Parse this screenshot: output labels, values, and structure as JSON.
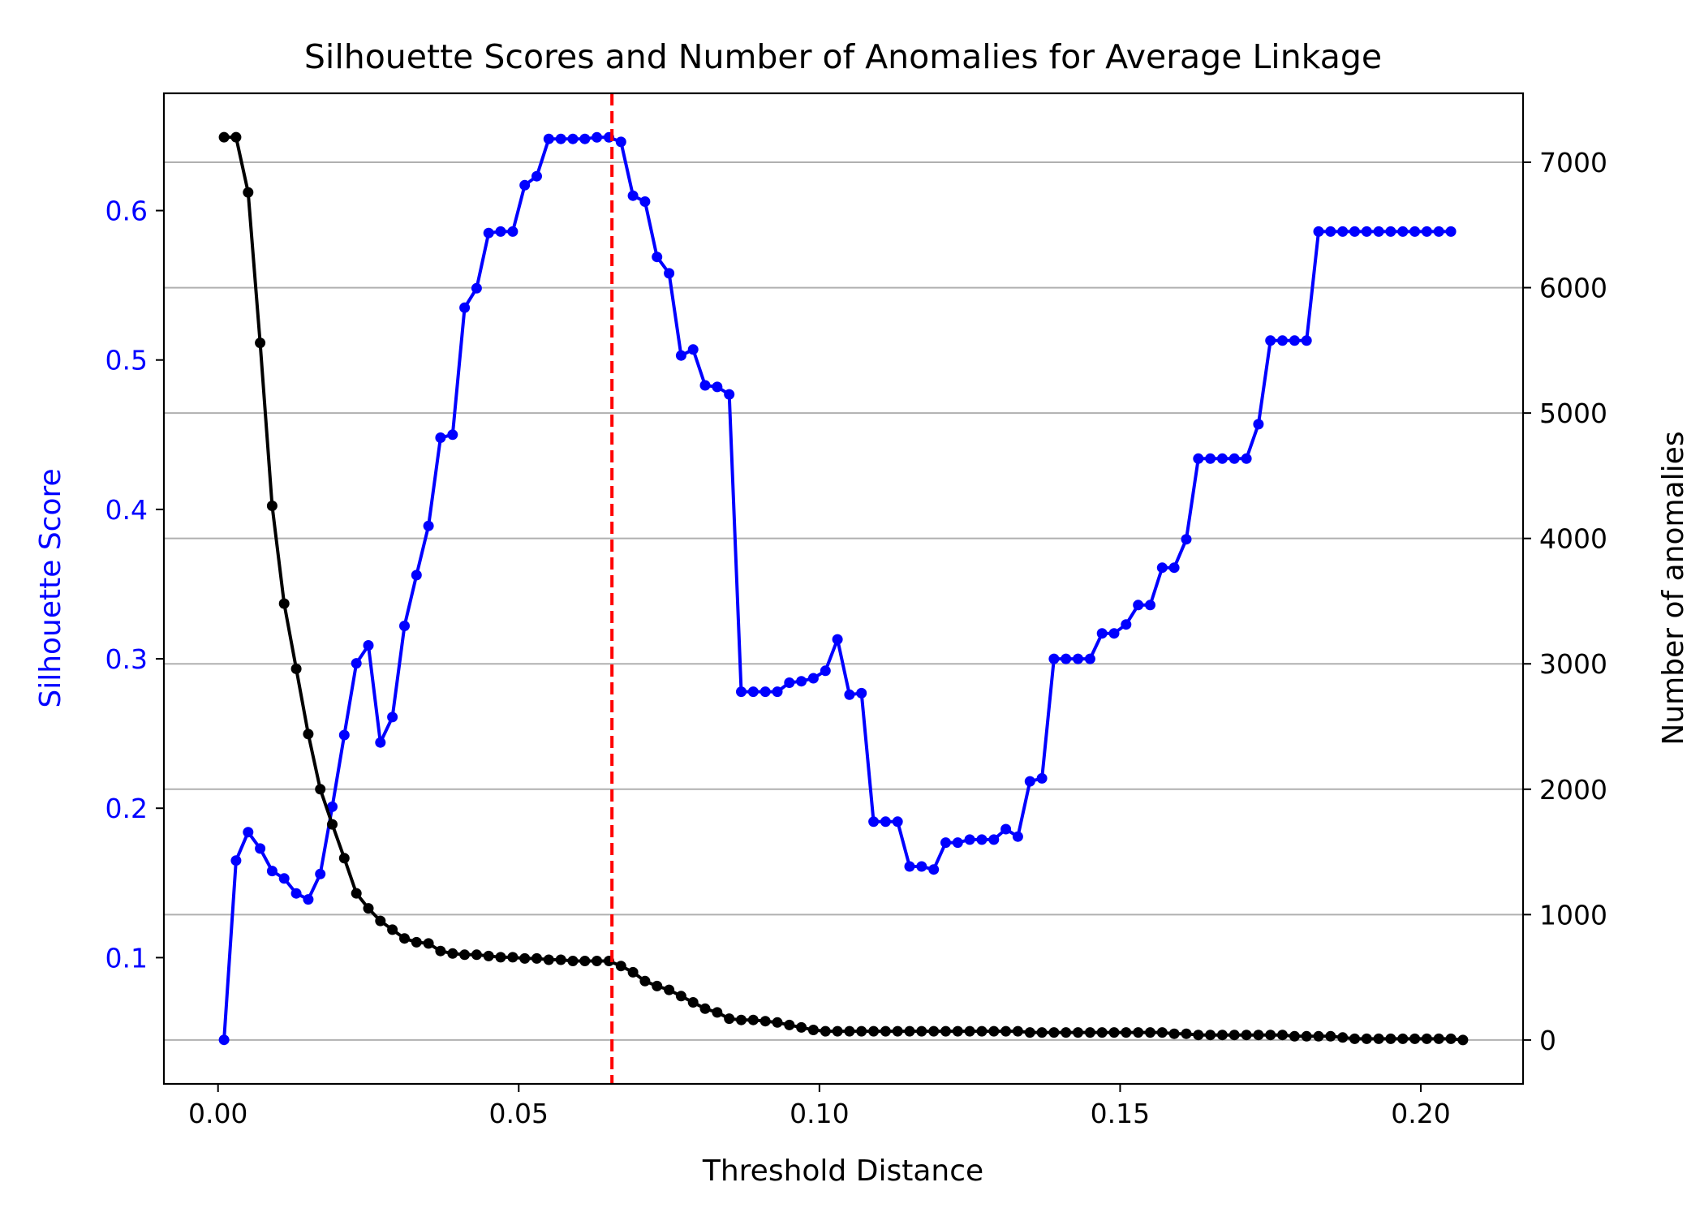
{
  "chart_data": {
    "type": "line",
    "title": "Silhouette Scores and Number of Anomalies for Average Linkage",
    "xlabel": "Threshold Distance",
    "ylabel_left": "Silhouette Score",
    "ylabel_right": "Number of anomalies",
    "xlim": [
      -0.009,
      0.217
    ],
    "ylim_left": [
      0.0155,
      0.6785
    ],
    "ylim_right": [
      -350,
      7550
    ],
    "x_ticks": [
      0.0,
      0.05,
      0.1,
      0.15,
      0.2
    ],
    "x_tick_labels": [
      "0.00",
      "0.05",
      "0.10",
      "0.15",
      "0.20"
    ],
    "y_left_ticks": [
      0.1,
      0.2,
      0.3,
      0.4,
      0.5,
      0.6
    ],
    "y_left_tick_labels": [
      "0.1",
      "0.2",
      "0.3",
      "0.4",
      "0.5",
      "0.6"
    ],
    "y_right_ticks": [
      0,
      1000,
      2000,
      3000,
      4000,
      5000,
      6000,
      7000
    ],
    "y_right_tick_labels": [
      "0",
      "1000",
      "2000",
      "3000",
      "4000",
      "5000",
      "6000",
      "7000"
    ],
    "grid": "horizontal lines at right-axis ticks",
    "colors": {
      "silhouette": "#0000ff",
      "anomalies": "#000000",
      "vline": "#ff0000",
      "grid": "#b0b0b0"
    },
    "vline_x": 0.0655,
    "series": [
      {
        "axis": "left",
        "x": [
          0.001,
          0.003,
          0.005,
          0.007,
          0.009,
          0.011,
          0.013,
          0.015,
          0.017,
          0.019,
          0.021,
          0.023,
          0.025,
          0.027,
          0.029,
          0.031,
          0.033,
          0.035,
          0.037,
          0.039,
          0.041,
          0.043,
          0.045,
          0.047,
          0.049,
          0.051,
          0.053,
          0.055,
          0.057,
          0.059,
          0.061,
          0.063,
          0.065,
          0.067,
          0.069,
          0.071,
          0.073,
          0.075,
          0.077,
          0.079,
          0.081,
          0.083,
          0.085,
          0.087,
          0.089,
          0.091,
          0.093,
          0.095,
          0.097,
          0.099,
          0.101,
          0.103,
          0.105,
          0.107,
          0.109,
          0.111,
          0.113,
          0.115,
          0.117,
          0.119,
          0.121,
          0.123,
          0.125,
          0.127,
          0.129,
          0.131,
          0.133,
          0.135,
          0.137,
          0.139,
          0.141,
          0.143,
          0.145,
          0.147,
          0.149,
          0.151,
          0.153,
          0.155,
          0.157,
          0.159,
          0.161,
          0.163,
          0.165,
          0.167,
          0.169,
          0.171,
          0.173,
          0.175,
          0.177,
          0.179,
          0.181,
          0.183,
          0.185,
          0.187,
          0.189,
          0.191,
          0.193,
          0.195,
          0.197,
          0.199,
          0.201,
          0.203,
          0.205
        ],
        "values": [
          0.045,
          0.165,
          0.184,
          0.173,
          0.158,
          0.153,
          0.143,
          0.139,
          0.156,
          0.201,
          0.249,
          0.297,
          0.309,
          0.244,
          0.261,
          0.322,
          0.356,
          0.389,
          0.448,
          0.45,
          0.535,
          0.548,
          0.585,
          0.586,
          0.586,
          0.617,
          0.623,
          0.648,
          0.648,
          0.648,
          0.648,
          0.649,
          0.649,
          0.646,
          0.61,
          0.606,
          0.569,
          0.558,
          0.503,
          0.507,
          0.483,
          0.482,
          0.477,
          0.278,
          0.278,
          0.278,
          0.278,
          0.284,
          0.285,
          0.287,
          0.292,
          0.313,
          0.276,
          0.277,
          0.191,
          0.191,
          0.191,
          0.161,
          0.161,
          0.159,
          0.177,
          0.177,
          0.179,
          0.179,
          0.179,
          0.186,
          0.181,
          0.218,
          0.22,
          0.3,
          0.3,
          0.3,
          0.3,
          0.317,
          0.317,
          0.323,
          0.336,
          0.336,
          0.361,
          0.361,
          0.38,
          0.434,
          0.434,
          0.434,
          0.434,
          0.434,
          0.457,
          0.513,
          0.513,
          0.513,
          0.513,
          0.586,
          0.586,
          0.586,
          0.586,
          0.586,
          0.586,
          0.586,
          0.586,
          0.586,
          0.586,
          0.586,
          0.586
        ]
      },
      {
        "axis": "right",
        "x": [
          0.001,
          0.003,
          0.005,
          0.007,
          0.009,
          0.011,
          0.013,
          0.015,
          0.017,
          0.019,
          0.021,
          0.023,
          0.025,
          0.027,
          0.029,
          0.031,
          0.033,
          0.035,
          0.037,
          0.039,
          0.041,
          0.043,
          0.045,
          0.047,
          0.049,
          0.051,
          0.053,
          0.055,
          0.057,
          0.059,
          0.061,
          0.063,
          0.065,
          0.067,
          0.069,
          0.071,
          0.073,
          0.075,
          0.077,
          0.079,
          0.081,
          0.083,
          0.085,
          0.087,
          0.089,
          0.091,
          0.093,
          0.095,
          0.097,
          0.099,
          0.101,
          0.103,
          0.105,
          0.107,
          0.109,
          0.111,
          0.113,
          0.115,
          0.117,
          0.119,
          0.121,
          0.123,
          0.125,
          0.127,
          0.129,
          0.131,
          0.133,
          0.135,
          0.137,
          0.139,
          0.141,
          0.143,
          0.145,
          0.147,
          0.149,
          0.151,
          0.153,
          0.155,
          0.157,
          0.159,
          0.161,
          0.163,
          0.165,
          0.167,
          0.169,
          0.171,
          0.173,
          0.175,
          0.177,
          0.179,
          0.181,
          0.183,
          0.185,
          0.187,
          0.189,
          0.191,
          0.193,
          0.195,
          0.197,
          0.199,
          0.201,
          0.203,
          0.205,
          0.207
        ],
        "values": [
          7200,
          7200,
          6760,
          5560,
          4260,
          3480,
          2960,
          2440,
          2000,
          1720,
          1450,
          1170,
          1050,
          950,
          880,
          810,
          780,
          770,
          710,
          690,
          680,
          680,
          670,
          660,
          660,
          650,
          650,
          640,
          640,
          630,
          630,
          630,
          630,
          590,
          540,
          470,
          430,
          400,
          350,
          300,
          250,
          220,
          170,
          160,
          160,
          150,
          140,
          120,
          100,
          80,
          70,
          70,
          70,
          70,
          70,
          70,
          70,
          70,
          70,
          70,
          70,
          70,
          70,
          70,
          70,
          70,
          70,
          60,
          60,
          60,
          60,
          60,
          60,
          60,
          60,
          60,
          60,
          60,
          60,
          50,
          50,
          40,
          40,
          40,
          40,
          40,
          40,
          40,
          40,
          30,
          30,
          30,
          30,
          20,
          10,
          10,
          10,
          10,
          10,
          10,
          10,
          10,
          10,
          0
        ]
      }
    ]
  }
}
